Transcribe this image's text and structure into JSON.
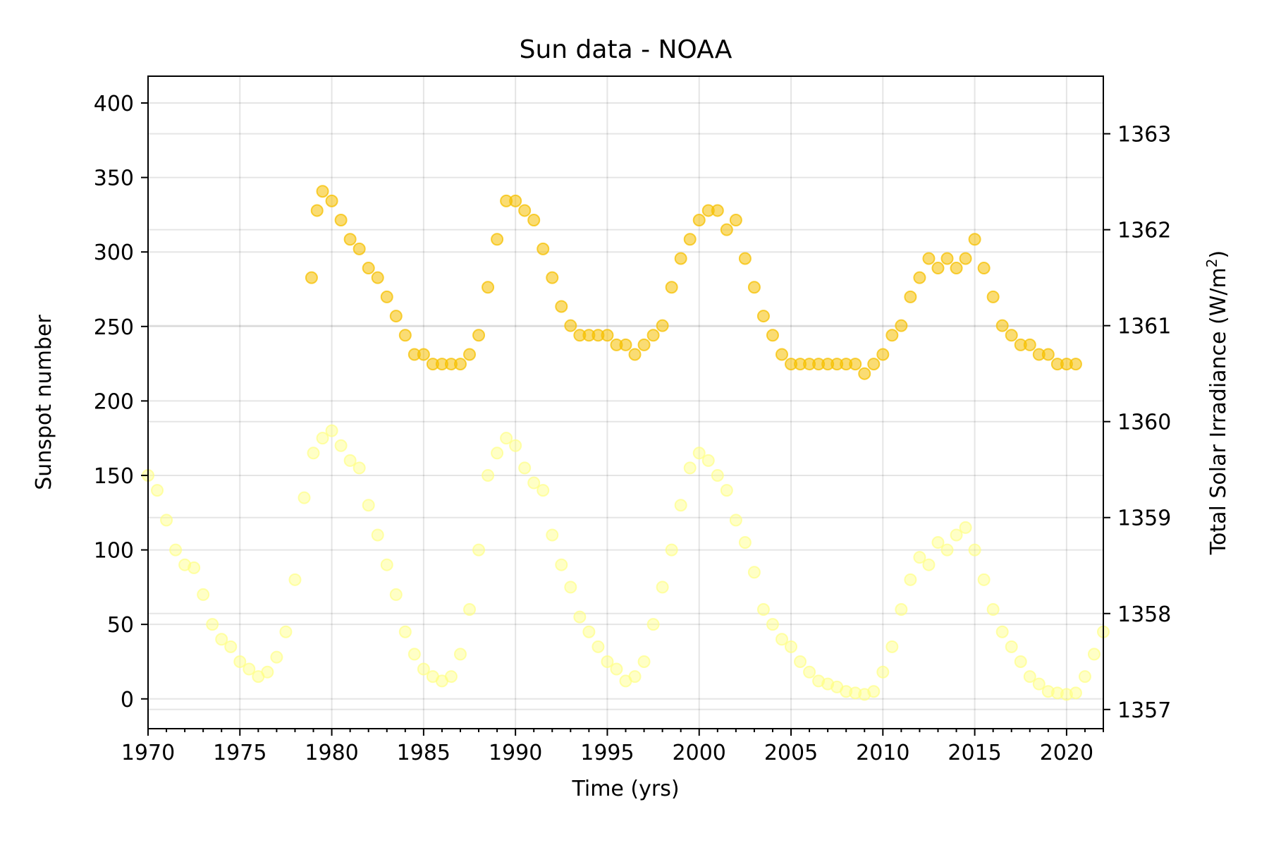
{
  "chart_data": {
    "type": "scatter",
    "title": "Sun data - NOAA",
    "xlabel": "Time (yrs)",
    "ylabel": "Sunspot number",
    "ylabel_right": "Total Solar Irradiance (W/m",
    "ylabel_right_sup": "2",
    "ylabel_right_close": ")",
    "xlim": [
      1970,
      2022
    ],
    "ylim_left": [
      -20,
      418
    ],
    "ylim_right": [
      1356.8,
      1363.6
    ],
    "grid": true,
    "x_ticks": [
      1970,
      1975,
      1980,
      1985,
      1990,
      1995,
      2000,
      2005,
      2010,
      2015,
      2020
    ],
    "x_tick_labels": [
      "1970",
      "1975",
      "1980",
      "1985",
      "1990",
      "1995",
      "2000",
      "2005",
      "2010",
      "2015",
      "2020"
    ],
    "y_left_ticks": [
      0,
      50,
      100,
      150,
      200,
      250,
      300,
      350,
      400
    ],
    "y_left_tick_labels": [
      "0",
      "50",
      "100",
      "150",
      "200",
      "250",
      "300",
      "350",
      "400"
    ],
    "y_right_ticks": [
      1357,
      1358,
      1359,
      1360,
      1361,
      1362,
      1363
    ],
    "y_right_tick_labels": [
      "1357",
      "1358",
      "1359",
      "1360",
      "1361",
      "1362",
      "1363"
    ],
    "series": [
      {
        "axis": "left",
        "color": "#ffff80",
        "opacity": 0.45,
        "x": [
          1970.0,
          1970.5,
          1971.0,
          1971.5,
          1972.0,
          1972.5,
          1973.0,
          1973.5,
          1974.0,
          1974.5,
          1975.0,
          1975.5,
          1976.0,
          1976.5,
          1977.0,
          1977.5,
          1978.0,
          1978.5,
          1979.0,
          1979.5,
          1980.0,
          1980.5,
          1981.0,
          1981.5,
          1982.0,
          1982.5,
          1983.0,
          1983.5,
          1984.0,
          1984.5,
          1985.0,
          1985.5,
          1986.0,
          1986.5,
          1987.0,
          1987.5,
          1988.0,
          1988.5,
          1989.0,
          1989.5,
          1990.0,
          1990.5,
          1991.0,
          1991.5,
          1992.0,
          1992.5,
          1993.0,
          1993.5,
          1994.0,
          1994.5,
          1995.0,
          1995.5,
          1996.0,
          1996.5,
          1997.0,
          1997.5,
          1998.0,
          1998.5,
          1999.0,
          1999.5,
          2000.0,
          2000.5,
          2001.0,
          2001.5,
          2002.0,
          2002.5,
          2003.0,
          2003.5,
          2004.0,
          2004.5,
          2005.0,
          2005.5,
          2006.0,
          2006.5,
          2007.0,
          2007.5,
          2008.0,
          2008.5,
          2009.0,
          2009.5,
          2010.0,
          2010.5,
          2011.0,
          2011.5,
          2012.0,
          2012.5,
          2013.0,
          2013.5,
          2014.0,
          2014.5,
          2015.0,
          2015.5,
          2016.0,
          2016.5,
          2017.0,
          2017.5,
          2018.0,
          2018.5,
          2019.0,
          2019.5,
          2020.0,
          2020.5,
          2021.0,
          2021.5,
          2022.0
        ],
        "y": [
          150,
          140,
          120,
          100,
          90,
          88,
          70,
          50,
          40,
          35,
          25,
          20,
          15,
          18,
          28,
          45,
          80,
          135,
          165,
          175,
          180,
          170,
          160,
          155,
          130,
          110,
          90,
          70,
          45,
          30,
          20,
          15,
          12,
          15,
          30,
          60,
          100,
          150,
          165,
          175,
          170,
          155,
          145,
          140,
          110,
          90,
          75,
          55,
          45,
          35,
          25,
          20,
          12,
          15,
          25,
          50,
          75,
          100,
          130,
          155,
          165,
          160,
          150,
          140,
          120,
          105,
          85,
          60,
          50,
          40,
          35,
          25,
          18,
          12,
          10,
          8,
          5,
          4,
          3,
          5,
          18,
          35,
          60,
          80,
          95,
          90,
          105,
          100,
          110,
          115,
          100,
          80,
          60,
          45,
          35,
          25,
          15,
          10,
          5,
          4,
          3,
          4,
          15,
          30,
          45
        ]
      },
      {
        "axis": "right",
        "color": "#f5c000",
        "opacity": 0.55,
        "x": [
          1978.9,
          1979.2,
          1979.5,
          1980.0,
          1980.5,
          1981.0,
          1981.5,
          1982.0,
          1982.5,
          1983.0,
          1983.5,
          1984.0,
          1984.5,
          1985.0,
          1985.5,
          1986.0,
          1986.5,
          1987.0,
          1987.5,
          1988.0,
          1988.5,
          1989.0,
          1989.5,
          1990.0,
          1990.5,
          1991.0,
          1991.5,
          1992.0,
          1992.5,
          1993.0,
          1993.5,
          1994.0,
          1994.5,
          1995.0,
          1995.5,
          1996.0,
          1996.5,
          1997.0,
          1997.5,
          1998.0,
          1998.5,
          1999.0,
          1999.5,
          2000.0,
          2000.5,
          2001.0,
          2001.5,
          2002.0,
          2002.5,
          2003.0,
          2003.5,
          2004.0,
          2004.5,
          2005.0,
          2005.5,
          2006.0,
          2006.5,
          2007.0,
          2007.5,
          2008.0,
          2008.5,
          2009.0,
          2009.5,
          2010.0,
          2010.5,
          2011.0,
          2011.5,
          2012.0,
          2012.5,
          2013.0,
          2013.5,
          2014.0,
          2014.5,
          2015.0,
          2015.5,
          2016.0,
          2016.5,
          2017.0,
          2017.5,
          2018.0,
          2018.5,
          2019.0,
          2019.5,
          2020.0,
          2020.5
        ],
        "y": [
          1361.5,
          1362.2,
          1362.4,
          1362.3,
          1362.1,
          1361.9,
          1361.8,
          1361.6,
          1361.5,
          1361.3,
          1361.1,
          1360.9,
          1360.7,
          1360.7,
          1360.6,
          1360.6,
          1360.6,
          1360.6,
          1360.7,
          1360.9,
          1361.4,
          1361.9,
          1362.3,
          1362.3,
          1362.2,
          1362.1,
          1361.8,
          1361.5,
          1361.2,
          1361.0,
          1360.9,
          1360.9,
          1360.9,
          1360.9,
          1360.8,
          1360.8,
          1360.7,
          1360.8,
          1360.9,
          1361.0,
          1361.4,
          1361.7,
          1361.9,
          1362.1,
          1362.2,
          1362.2,
          1362.0,
          1362.1,
          1361.7,
          1361.4,
          1361.1,
          1360.9,
          1360.7,
          1360.6,
          1360.6,
          1360.6,
          1360.6,
          1360.6,
          1360.6,
          1360.6,
          1360.6,
          1360.5,
          1360.6,
          1360.7,
          1360.9,
          1361.0,
          1361.3,
          1361.5,
          1361.7,
          1361.6,
          1361.7,
          1361.6,
          1361.7,
          1361.9,
          1361.6,
          1361.3,
          1361.0,
          1360.9,
          1360.8,
          1360.8,
          1360.7,
          1360.7,
          1360.6,
          1360.6,
          1360.6
        ]
      }
    ]
  }
}
